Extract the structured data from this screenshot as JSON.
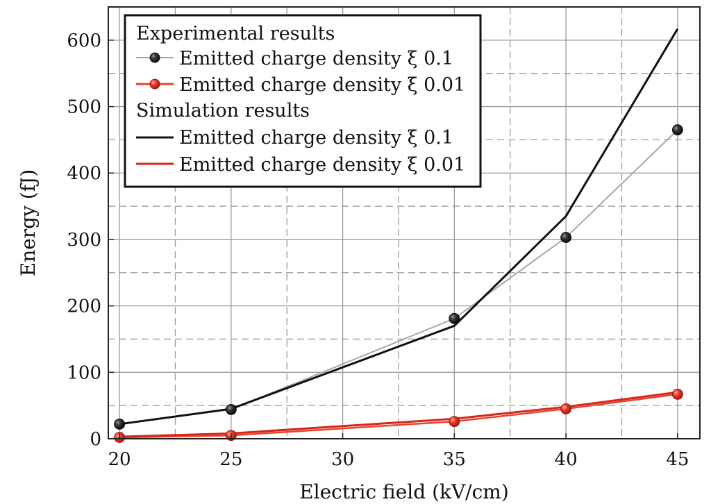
{
  "chart_data": {
    "type": "line",
    "xlabel": "Electric field (kV/cm)",
    "ylabel": "Energy (fJ)",
    "xlim": [
      19.5,
      46
    ],
    "ylim": [
      0,
      650
    ],
    "x_ticks": [
      20,
      25,
      30,
      35,
      40,
      45
    ],
    "y_ticks": [
      0,
      100,
      200,
      300,
      400,
      500,
      600
    ],
    "x_tick_labels": [
      "20",
      "25",
      "30",
      "35",
      "40",
      "45"
    ],
    "y_tick_labels": [
      "0",
      "100",
      "200",
      "300",
      "400",
      "500",
      "600"
    ],
    "grid": true,
    "legend_position": "top-left",
    "legend_groups": [
      {
        "heading": "Experimental results",
        "entries": [
          "Emitted charge density ξ 0.1",
          "Emitted charge density ξ 0.01"
        ]
      },
      {
        "heading": "Simulation results",
        "entries": [
          "Emitted charge density ξ 0.1",
          "Emitted charge density ξ 0.01"
        ]
      }
    ],
    "series": [
      {
        "name": "Experimental: Emitted charge density ξ 0.1",
        "kind": "experimental",
        "color": "#1a1a1a",
        "line_color": "#a8a8a8",
        "x": [
          20,
          25,
          35,
          40,
          45
        ],
        "y": [
          22,
          44,
          181,
          303,
          465
        ]
      },
      {
        "name": "Experimental: Emitted charge density ξ 0.01",
        "kind": "experimental",
        "color": "#e02a1c",
        "line_color": "#e8432f",
        "x": [
          20,
          25,
          35,
          40,
          45
        ],
        "y": [
          2,
          5,
          26,
          45,
          67
        ]
      },
      {
        "name": "Simulation: Emitted charge density ξ 0.1",
        "kind": "simulation",
        "color": "#111111",
        "x": [
          20,
          25,
          35,
          40,
          45
        ],
        "y": [
          22,
          45,
          170,
          335,
          617
        ]
      },
      {
        "name": "Simulation: Emitted charge density ξ 0.01",
        "kind": "simulation",
        "color": "#d7261b",
        "x": [
          20,
          25,
          35,
          40,
          45
        ],
        "y": [
          3,
          8,
          30,
          48,
          70
        ]
      }
    ]
  }
}
